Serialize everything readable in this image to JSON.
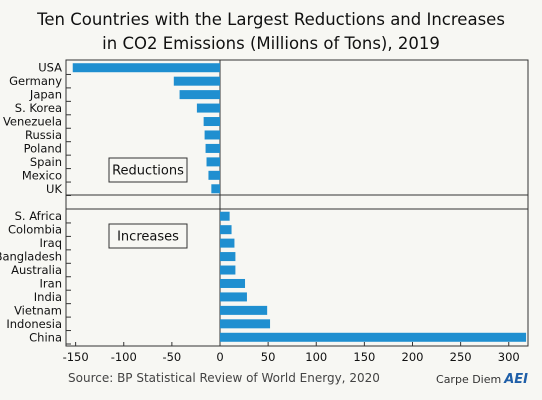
{
  "chart_data": {
    "type": "bar",
    "orientation": "horizontal",
    "title_lines": [
      "Ten Countries with the Largest Reductions and Increases",
      "in CO2 Emissions (Millions of Tons), 2019"
    ],
    "xlim": [
      -160,
      320
    ],
    "xticks": [
      -150,
      -100,
      -50,
      0,
      50,
      100,
      150,
      200,
      250,
      300
    ],
    "xtick_labels": [
      "-150",
      "-100",
      "-50",
      "0",
      "50",
      "100",
      "150",
      "200",
      "250",
      "300"
    ],
    "grid": false,
    "bar_color": "#1f8fd0",
    "groups": [
      {
        "name": "Reductions",
        "categories": [
          "USA",
          "Germany",
          "Japan",
          "S. Korea",
          "Venezuela",
          "Russia",
          "Poland",
          "Spain",
          "Mexico",
          "UK"
        ],
        "values": [
          -153,
          -48,
          -42,
          -24,
          -17,
          -16,
          -15,
          -14,
          -12,
          -9
        ]
      },
      {
        "name": "Increases",
        "categories": [
          "S. Africa",
          "Colombia",
          "Iraq",
          "Bangladesh",
          "Australia",
          "Iran",
          "India",
          "Vietnam",
          "Indonesia",
          "China"
        ],
        "values": [
          10,
          12,
          15,
          16,
          16,
          26,
          28,
          49,
          52,
          318
        ]
      }
    ]
  },
  "source": "Source: BP Statistical Review of World Energy, 2020",
  "brand": {
    "text": "Carpe Diem",
    "logo": "AEI"
  }
}
